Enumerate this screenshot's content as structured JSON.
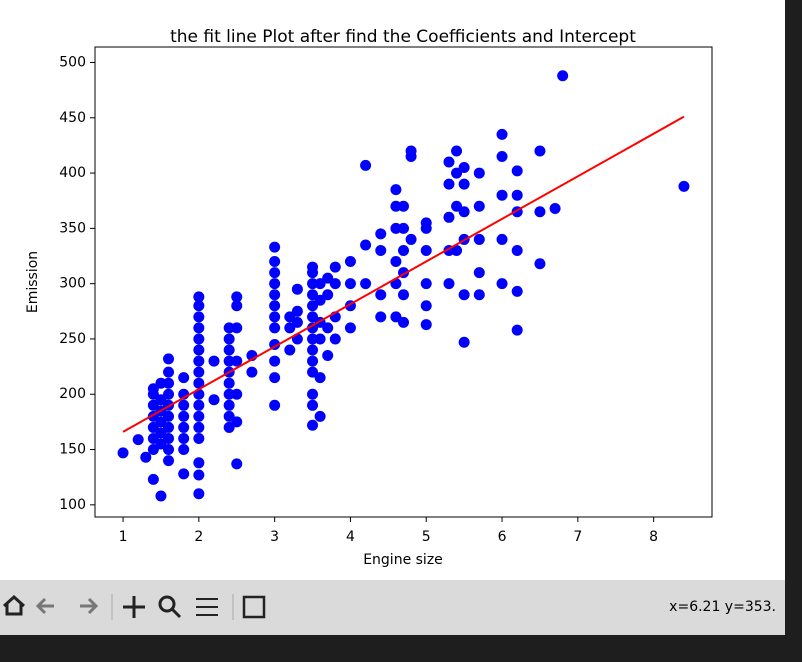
{
  "chart_data": {
    "type": "scatter",
    "title": "the fit line Plot after find the Coefficients and Intercept",
    "x_label": "Engine size",
    "y_label": "Emission",
    "color": "#0000ff",
    "x": [
      1,
      1.2,
      1.3,
      1.4,
      1.4,
      1.4,
      1.4,
      1.4,
      1.4,
      1.4,
      1.4,
      1.5,
      1.5,
      1.5,
      1.5,
      1.5,
      1.5,
      1.5,
      1.6,
      1.6,
      1.6,
      1.6,
      1.6,
      1.6,
      1.6,
      1.6,
      1.6,
      1.6,
      1.8,
      1.8,
      1.8,
      1.8,
      1.8,
      1.8,
      1.8,
      1.8,
      2,
      2,
      2,
      2,
      2,
      2,
      2,
      2,
      2,
      2,
      2,
      2,
      2,
      2,
      2,
      2,
      2,
      2.2,
      2.2,
      2.4,
      2.4,
      2.4,
      2.4,
      2.4,
      2.4,
      2.4,
      2.4,
      2.4,
      2.4,
      2.5,
      2.5,
      2.5,
      2.5,
      2.5,
      2.5,
      2.5,
      2.7,
      2.7,
      3,
      3,
      3,
      3,
      3,
      3,
      3,
      3,
      3,
      3,
      3,
      3,
      3.2,
      3.2,
      3.2,
      3.3,
      3.3,
      3.3,
      3.3,
      3.5,
      3.5,
      3.5,
      3.5,
      3.5,
      3.5,
      3.5,
      3.5,
      3.5,
      3.5,
      3.5,
      3.5,
      3.5,
      3.5,
      3.6,
      3.6,
      3.6,
      3.6,
      3.6,
      3.6,
      3.7,
      3.7,
      3.7,
      3.7,
      3.8,
      3.8,
      3.8,
      3.8,
      4,
      4,
      4,
      4,
      4.2,
      4.2,
      4.2,
      4.4,
      4.4,
      4.4,
      4.4,
      4.6,
      4.6,
      4.6,
      4.6,
      4.6,
      4.6,
      4.7,
      4.7,
      4.7,
      4.7,
      4.7,
      4.7,
      4.8,
      4.8,
      4.8,
      5,
      5,
      5,
      5,
      5,
      5,
      5.3,
      5.3,
      5.3,
      5.3,
      5.3,
      5.4,
      5.4,
      5.4,
      5.4,
      5.5,
      5.5,
      5.5,
      5.5,
      5.5,
      5.5,
      5.7,
      5.7,
      5.7,
      5.7,
      5.7,
      6,
      6,
      6,
      6,
      6,
      6.2,
      6.2,
      6.2,
      6.2,
      6.2,
      6.2,
      6.5,
      6.5,
      6.5,
      6.7,
      6.8,
      8.4
    ],
    "values": [
      147,
      159,
      143,
      123,
      150,
      160,
      170,
      180,
      190,
      200,
      205,
      108,
      155,
      165,
      175,
      185,
      195,
      210,
      140,
      150,
      160,
      170,
      180,
      190,
      200,
      210,
      220,
      232,
      128,
      150,
      160,
      170,
      180,
      190,
      200,
      215,
      110,
      127,
      138,
      160,
      170,
      180,
      190,
      200,
      210,
      220,
      230,
      240,
      250,
      260,
      270,
      280,
      288,
      195,
      230,
      170,
      180,
      190,
      200,
      210,
      220,
      230,
      240,
      250,
      260,
      137,
      175,
      200,
      230,
      260,
      280,
      288,
      220,
      235,
      190,
      215,
      230,
      245,
      260,
      270,
      280,
      290,
      300,
      310,
      320,
      333,
      240,
      260,
      270,
      250,
      265,
      275,
      295,
      172,
      190,
      200,
      220,
      230,
      240,
      250,
      260,
      270,
      280,
      290,
      300,
      310,
      315,
      180,
      215,
      250,
      265,
      285,
      300,
      235,
      260,
      290,
      305,
      250,
      270,
      300,
      315,
      260,
      280,
      300,
      320,
      300,
      335,
      407,
      270,
      290,
      330,
      345,
      270,
      300,
      320,
      350,
      370,
      385,
      265,
      290,
      310,
      330,
      350,
      370,
      340,
      415,
      420,
      263,
      280,
      300,
      330,
      350,
      355,
      300,
      330,
      360,
      390,
      410,
      330,
      370,
      400,
      420,
      247,
      290,
      340,
      365,
      390,
      405,
      290,
      310,
      340,
      370,
      400,
      300,
      340,
      380,
      415,
      435,
      258,
      293,
      330,
      365,
      380,
      402,
      318,
      365,
      420,
      368,
      488,
      388
    ],
    "fit_line": {
      "x": [
        1,
        8.4
      ],
      "values": [
        166,
        451
      ],
      "color": "#ff0000"
    },
    "xlim": [
      0.63,
      8.77
    ],
    "xticks": [
      1,
      2,
      3,
      4,
      5,
      6,
      7,
      8
    ],
    "ylim": [
      89,
      514
    ],
    "yticks": [
      100,
      150,
      200,
      250,
      300,
      350,
      400,
      450,
      500
    ]
  },
  "toolbar": {
    "status": "x=6.21 y=353."
  }
}
